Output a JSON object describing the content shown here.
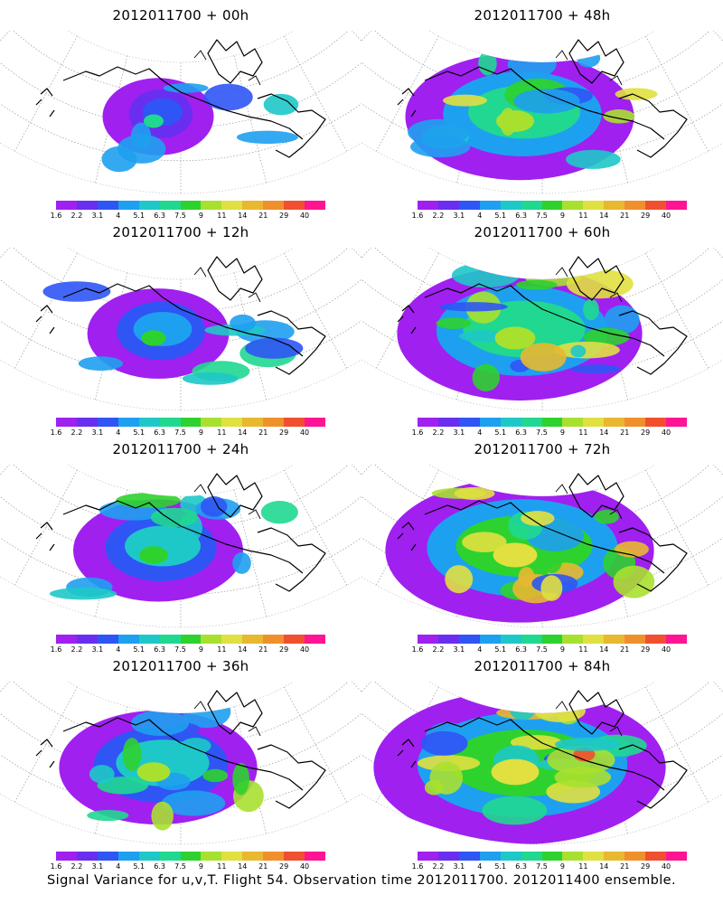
{
  "colorbar": {
    "ticks": [
      "1.6",
      "2.2",
      "3.1",
      "4",
      "5.1",
      "6.3",
      "7.5",
      "9",
      "11",
      "14",
      "21",
      "29",
      "40"
    ],
    "colors": [
      "#a020f0",
      "#6a2ef0",
      "#2f55f5",
      "#1ea0f0",
      "#1ec8c8",
      "#20d890",
      "#2ed22e",
      "#a8e030",
      "#e0e040",
      "#e8b830",
      "#f0902c",
      "#f05030",
      "#ff1493"
    ]
  },
  "panels": [
    {
      "title": "2012011700 + 00h",
      "level": 0.05
    },
    {
      "title": "2012011700 + 48h",
      "level": 0.55
    },
    {
      "title": "2012011700 + 12h",
      "level": 0.18
    },
    {
      "title": "2012011700 + 60h",
      "level": 0.62
    },
    {
      "title": "2012011700 + 24h",
      "level": 0.3
    },
    {
      "title": "2012011700 + 72h",
      "level": 0.72
    },
    {
      "title": "2012011700 + 36h",
      "level": 0.42
    },
    {
      "title": "2012011700 + 84h",
      "level": 0.82
    }
  ],
  "caption": "Signal Variance for u,v,T. Flight 54. Observation time 2012011700. 2012011400 ensemble."
}
